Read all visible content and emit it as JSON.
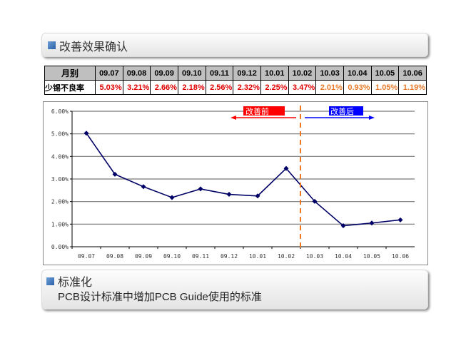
{
  "section1": {
    "title": "改善效果确认"
  },
  "table": {
    "header_label": "月别",
    "row_label": "少锡不良率",
    "months": [
      "09.07",
      "09.08",
      "09.09",
      "09.10",
      "09.11",
      "09.12",
      "10.01",
      "10.02",
      "10.03",
      "10.04",
      "10.05",
      "10.06"
    ],
    "values": [
      "5.03%",
      "3.21%",
      "2.66%",
      "2.18%",
      "2.56%",
      "2.32%",
      "2.25%",
      "3.47%",
      "2.01%",
      "0.93%",
      "1.05%",
      "1.19%"
    ]
  },
  "chart_data": {
    "type": "line",
    "x": [
      "09.07",
      "09.08",
      "09.09",
      "09.10",
      "09.11",
      "09.12",
      "10.01",
      "10.02",
      "10.03",
      "10.04",
      "10.05",
      "10.06"
    ],
    "series": [
      {
        "values": [
          5.03,
          3.21,
          2.66,
          2.18,
          2.56,
          2.32,
          2.25,
          3.47,
          2.01,
          0.93,
          1.05,
          1.19
        ],
        "color": "#000066"
      }
    ],
    "yticks": [
      "0.00%",
      "1.00%",
      "2.00%",
      "3.00%",
      "4.00%",
      "5.00%",
      "6.00%"
    ],
    "ylim": [
      0,
      6
    ],
    "grid": true,
    "annotations": {
      "before": "改善前",
      "after": "改善后",
      "divider_between": [
        "10.02",
        "10.03"
      ],
      "before_color": "#ff0000",
      "after_color": "#0000ff",
      "divider_color": "#f07820"
    }
  },
  "section2": {
    "title": "标准化",
    "text": "PCB设计标准中增加PCB Guide使用的标准"
  }
}
